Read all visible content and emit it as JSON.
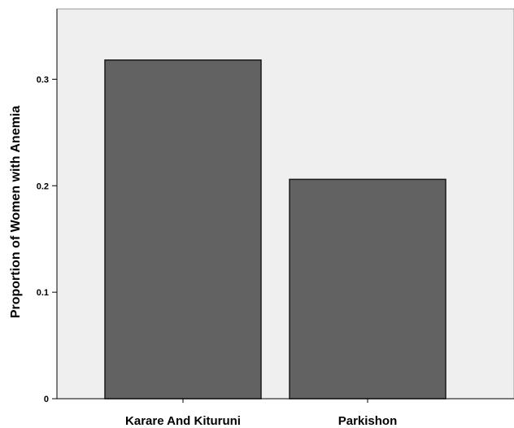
{
  "chart_data": {
    "type": "bar",
    "categories": [
      "Karare And Kituruni",
      "Parkishon"
    ],
    "values": [
      0.318,
      0.206
    ],
    "title": "",
    "xlabel": "",
    "ylabel": "Proportion of Women with Anemia",
    "ylim": [
      0,
      0.366
    ],
    "yticks": [
      0,
      0.1,
      0.2,
      0.3
    ],
    "ytick_labels": [
      "0",
      "0.1",
      "0.2",
      "0.3"
    ],
    "grid": false,
    "colors": {
      "bar_fill": "#626262",
      "bar_stroke": "#1a1a1a",
      "plot_background": "#efefef",
      "axis": "#000000"
    }
  }
}
